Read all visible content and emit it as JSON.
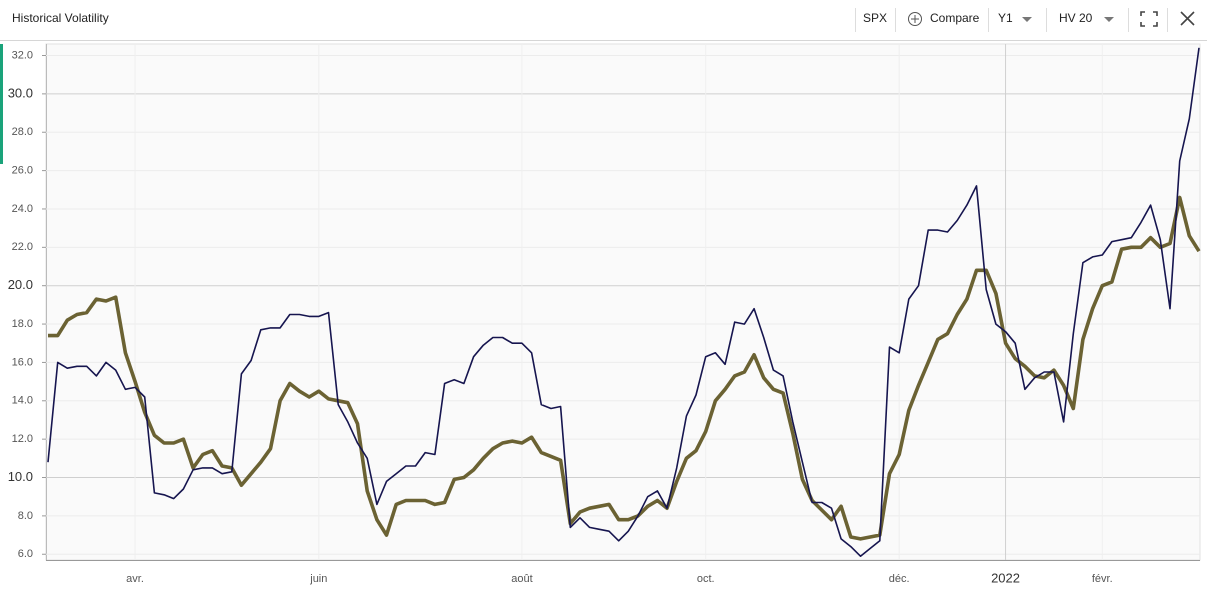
{
  "chart_data": {
    "type": "line",
    "title": "Historical Volatility",
    "categories": [
      null,
      null,
      null,
      null,
      null,
      null,
      null,
      null,
      null,
      "avr.",
      null,
      null,
      null,
      null,
      null,
      null,
      null,
      null,
      null,
      null,
      null,
      null,
      null,
      null,
      null,
      null,
      null,
      null,
      "juin",
      null,
      null,
      null,
      null,
      null,
      null,
      null,
      null,
      null,
      null,
      null,
      null,
      null,
      null,
      null,
      null,
      null,
      null,
      null,
      null,
      "août",
      null,
      null,
      null,
      null,
      null,
      null,
      null,
      null,
      null,
      null,
      null,
      null,
      null,
      null,
      null,
      null,
      null,
      null,
      "oct.",
      null,
      null,
      null,
      null,
      null,
      null,
      null,
      null,
      null,
      null,
      null,
      null,
      null,
      null,
      null,
      null,
      null,
      null,
      null,
      "déc.",
      null,
      null,
      null,
      null,
      null,
      null,
      null,
      null,
      null,
      null,
      "2022",
      null,
      null,
      null,
      null,
      null,
      null,
      null,
      null,
      null,
      "févr.",
      null,
      null,
      null,
      null,
      null,
      null,
      null,
      null,
      null,
      null
    ],
    "series": [
      {
        "color": "#16154f",
        "values": [
          10.8,
          16.0,
          15.7,
          15.8,
          15.8,
          15.3,
          16.0,
          15.6,
          14.6,
          14.7,
          14.2,
          9.2,
          9.1,
          8.9,
          9.4,
          10.4,
          10.5,
          10.5,
          10.2,
          10.3,
          15.4,
          16.1,
          17.7,
          17.8,
          17.8,
          18.5,
          18.5,
          18.4,
          18.4,
          18.6,
          13.8,
          12.9,
          11.8,
          11.0,
          8.6,
          9.8,
          10.2,
          10.6,
          10.6,
          11.3,
          11.2,
          14.9,
          15.1,
          14.9,
          16.3,
          16.9,
          17.3,
          17.3,
          17.0,
          17.0,
          16.5,
          13.8,
          13.6,
          13.7,
          7.4,
          7.9,
          7.4,
          7.3,
          7.2,
          6.7,
          7.2,
          8.0,
          9.0,
          9.3,
          8.4,
          10.5,
          13.2,
          14.3,
          16.3,
          16.5,
          15.9,
          18.1,
          18.0,
          18.8,
          17.3,
          15.6,
          15.3,
          12.9,
          10.8,
          8.7,
          8.7,
          8.4,
          6.8,
          6.4,
          5.9,
          6.3,
          6.7,
          16.8,
          16.5,
          19.3,
          20.0,
          22.9,
          22.9,
          22.8,
          23.4,
          24.2,
          25.2,
          19.8,
          18.0,
          17.6,
          17.0,
          14.6,
          15.2,
          15.5,
          15.5,
          12.9,
          17.5,
          21.2,
          21.5,
          21.6,
          22.3,
          22.4,
          22.5,
          23.3,
          24.2,
          22.4,
          18.8,
          26.5,
          28.7,
          32.4
        ]
      },
      {
        "color": "#6b6233",
        "values": [
          17.4,
          17.4,
          18.2,
          18.5,
          18.6,
          19.3,
          19.2,
          19.4,
          16.5,
          15.0,
          13.4,
          12.2,
          11.8,
          11.8,
          12.0,
          10.5,
          11.2,
          11.4,
          10.6,
          10.5,
          9.6,
          10.2,
          10.8,
          11.5,
          14.0,
          14.9,
          14.5,
          14.2,
          14.5,
          14.1,
          14.0,
          13.9,
          12.8,
          9.3,
          7.8,
          7.0,
          8.6,
          8.8,
          8.8,
          8.8,
          8.6,
          8.7,
          9.9,
          10.0,
          10.4,
          11.0,
          11.5,
          11.8,
          11.9,
          11.8,
          12.1,
          11.3,
          11.1,
          10.9,
          7.6,
          8.2,
          8.4,
          8.5,
          8.6,
          7.8,
          7.8,
          8.0,
          8.5,
          8.8,
          8.4,
          9.8,
          11.0,
          11.4,
          12.4,
          14.0,
          14.6,
          15.3,
          15.5,
          16.4,
          15.2,
          14.6,
          14.4,
          12.3,
          9.9,
          8.8,
          8.3,
          7.8,
          8.5,
          6.9,
          6.8,
          6.9,
          7.0,
          10.2,
          11.2,
          13.5,
          14.8,
          16.0,
          17.2,
          17.5,
          18.5,
          19.3,
          20.8,
          20.8,
          19.6,
          17.0,
          16.2,
          15.8,
          15.3,
          15.2,
          15.6,
          14.8,
          13.6,
          17.2,
          18.8,
          20.0,
          20.2,
          21.9,
          22.0,
          22.0,
          22.5,
          22.0,
          22.2,
          24.6,
          22.6,
          21.8
        ]
      }
    ],
    "ylim": [
      5.7,
      32.6
    ],
    "yticks": [
      {
        "value": 6,
        "label": "6.0"
      },
      {
        "value": 8,
        "label": "8.0"
      },
      {
        "value": 10,
        "label": "10.0"
      },
      {
        "value": 12,
        "label": "12.0"
      },
      {
        "value": 14,
        "label": "14.0"
      },
      {
        "value": 16,
        "label": "16.0"
      },
      {
        "value": 18,
        "label": "18.0"
      },
      {
        "value": 20,
        "label": "20.0"
      },
      {
        "value": 22,
        "label": "22.0"
      },
      {
        "value": 24,
        "label": "24.0"
      },
      {
        "value": 26,
        "label": "26.0"
      },
      {
        "value": 28,
        "label": "28.0"
      },
      {
        "value": 30,
        "label": "30.0"
      },
      {
        "value": 32,
        "label": "32.0"
      }
    ],
    "grid": true
  },
  "toolbar": {
    "symbol": "SPX",
    "compare": "Compare",
    "period": "Y1",
    "indicator": "HV 20"
  }
}
